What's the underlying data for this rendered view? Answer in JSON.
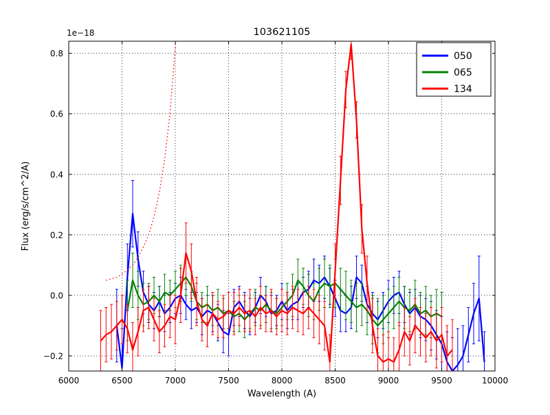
{
  "chart_data": {
    "type": "line",
    "title": "103621105",
    "xlabel": "Wavelength (A)",
    "ylabel": "Flux (erg/s/cm^2/A)",
    "y_offset_label": "1e−18",
    "xlim": [
      6000,
      10000
    ],
    "ylim": [
      -0.25,
      0.84
    ],
    "xticks": [
      6000,
      6500,
      7000,
      7500,
      8000,
      8500,
      9000,
      9500,
      10000
    ],
    "yticks": [
      -0.2,
      0.0,
      0.2,
      0.4,
      0.6,
      0.8
    ],
    "grid": "dotted",
    "legend": {
      "position": "upper right"
    },
    "series": [
      {
        "name": "050",
        "color": "#0000ff",
        "style": "solid",
        "points": [
          [
            6450,
            -0.1,
            0.12
          ],
          [
            6500,
            -0.24,
            0.13
          ],
          [
            6550,
            0.06,
            0.11
          ],
          [
            6600,
            0.27,
            0.11
          ],
          [
            6650,
            0.12,
            0.09
          ],
          [
            6700,
            0.01,
            0.07
          ],
          [
            6750,
            -0.03,
            0.06
          ],
          [
            6800,
            -0.05,
            0.06
          ],
          [
            6850,
            -0.02,
            0.05
          ],
          [
            6900,
            -0.06,
            0.06
          ],
          [
            6950,
            -0.04,
            0.05
          ],
          [
            7000,
            -0.01,
            0.05
          ],
          [
            7050,
            0,
            0.06
          ],
          [
            7100,
            -0.03,
            0.05
          ],
          [
            7150,
            -0.05,
            0.06
          ],
          [
            7200,
            -0.04,
            0.05
          ],
          [
            7250,
            -0.07,
            0.06
          ],
          [
            7300,
            -0.05,
            0.05
          ],
          [
            7350,
            -0.06,
            0.06
          ],
          [
            7400,
            -0.09,
            0.06
          ],
          [
            7450,
            -0.12,
            0.07
          ],
          [
            7500,
            -0.13,
            0.07
          ],
          [
            7550,
            -0.04,
            0.06
          ],
          [
            7600,
            -0.02,
            0.05
          ],
          [
            7650,
            -0.05,
            0.06
          ],
          [
            7700,
            -0.07,
            0.06
          ],
          [
            7750,
            -0.04,
            0.05
          ],
          [
            7800,
            0,
            0.06
          ],
          [
            7850,
            -0.02,
            0.05
          ],
          [
            7900,
            -0.06,
            0.06
          ],
          [
            7950,
            -0.05,
            0.05
          ],
          [
            8000,
            -0.02,
            0.06
          ],
          [
            8050,
            -0.05,
            0.06
          ],
          [
            8100,
            -0.03,
            0.05
          ],
          [
            8150,
            -0.02,
            0.06
          ],
          [
            8200,
            0.01,
            0.05
          ],
          [
            8250,
            0.02,
            0.06
          ],
          [
            8300,
            0.05,
            0.07
          ],
          [
            8350,
            0.04,
            0.06
          ],
          [
            8400,
            0.06,
            0.07
          ],
          [
            8450,
            0.03,
            0.06
          ],
          [
            8500,
            -0.01,
            0.06
          ],
          [
            8550,
            -0.05,
            0.07
          ],
          [
            8600,
            -0.06,
            0.06
          ],
          [
            8650,
            -0.04,
            0.07
          ],
          [
            8700,
            0.06,
            0.07
          ],
          [
            8750,
            0.04,
            0.06
          ],
          [
            8800,
            -0.03,
            0.06
          ],
          [
            8850,
            -0.06,
            0.07
          ],
          [
            8900,
            -0.08,
            0.06
          ],
          [
            8950,
            -0.05,
            0.06
          ],
          [
            9000,
            -0.02,
            0.07
          ],
          [
            9050,
            0,
            0.06
          ],
          [
            9100,
            0.01,
            0.07
          ],
          [
            9150,
            -0.03,
            0.06
          ],
          [
            9200,
            -0.06,
            0.07
          ],
          [
            9250,
            -0.04,
            0.06
          ],
          [
            9300,
            -0.07,
            0.07
          ],
          [
            9350,
            -0.08,
            0.07
          ],
          [
            9400,
            -0.1,
            0.08
          ],
          [
            9450,
            -0.13,
            0.08
          ],
          [
            9500,
            -0.16,
            0.09
          ],
          [
            9550,
            -0.22,
            0.1
          ],
          [
            9600,
            -0.25,
            0.11
          ],
          [
            9650,
            -0.23,
            0.12
          ],
          [
            9700,
            -0.2,
            0.1
          ],
          [
            9750,
            -0.13,
            0.09
          ],
          [
            9800,
            -0.06,
            0.1
          ],
          [
            9850,
            -0.01,
            0.14
          ],
          [
            9900,
            -0.22,
            0.1
          ]
        ]
      },
      {
        "name": "065",
        "color": "#008000",
        "style": "solid",
        "points": [
          [
            6550,
            -0.05,
            0.1
          ],
          [
            6600,
            0.05,
            0.09
          ],
          [
            6650,
            0,
            0.08
          ],
          [
            6700,
            -0.03,
            0.07
          ],
          [
            6750,
            -0.02,
            0.06
          ],
          [
            6800,
            0,
            0.06
          ],
          [
            6850,
            -0.02,
            0.05
          ],
          [
            6900,
            0.01,
            0.06
          ],
          [
            6950,
            0,
            0.05
          ],
          [
            7000,
            0.02,
            0.06
          ],
          [
            7050,
            0.04,
            0.06
          ],
          [
            7100,
            0.06,
            0.06
          ],
          [
            7150,
            0.03,
            0.05
          ],
          [
            7200,
            -0.02,
            0.06
          ],
          [
            7250,
            -0.04,
            0.05
          ],
          [
            7300,
            -0.03,
            0.06
          ],
          [
            7350,
            -0.05,
            0.05
          ],
          [
            7400,
            -0.04,
            0.06
          ],
          [
            7450,
            -0.06,
            0.05
          ],
          [
            7500,
            -0.05,
            0.06
          ],
          [
            7550,
            -0.07,
            0.05
          ],
          [
            7600,
            -0.06,
            0.06
          ],
          [
            7650,
            -0.08,
            0.06
          ],
          [
            7700,
            -0.06,
            0.05
          ],
          [
            7750,
            -0.04,
            0.06
          ],
          [
            7800,
            -0.05,
            0.05
          ],
          [
            7850,
            -0.03,
            0.06
          ],
          [
            7900,
            -0.05,
            0.06
          ],
          [
            7950,
            -0.06,
            0.05
          ],
          [
            8000,
            -0.04,
            0.06
          ],
          [
            8050,
            -0.02,
            0.06
          ],
          [
            8100,
            0,
            0.07
          ],
          [
            8150,
            0.05,
            0.07
          ],
          [
            8200,
            0.03,
            0.06
          ],
          [
            8250,
            0,
            0.07
          ],
          [
            8300,
            -0.02,
            0.06
          ],
          [
            8350,
            0.02,
            0.07
          ],
          [
            8400,
            0.04,
            0.08
          ],
          [
            8450,
            0.03,
            0.07
          ],
          [
            8500,
            0.04,
            0.08
          ],
          [
            8550,
            0.02,
            0.07
          ],
          [
            8600,
            0,
            0.08
          ],
          [
            8650,
            -0.02,
            0.07
          ],
          [
            8700,
            -0.04,
            0.08
          ],
          [
            8750,
            -0.03,
            0.07
          ],
          [
            8800,
            -0.05,
            0.08
          ],
          [
            8850,
            -0.08,
            0.08
          ],
          [
            8900,
            -0.1,
            0.09
          ],
          [
            8950,
            -0.08,
            0.08
          ],
          [
            9000,
            -0.06,
            0.08
          ],
          [
            9050,
            -0.04,
            0.07
          ],
          [
            9100,
            -0.02,
            0.08
          ],
          [
            9150,
            -0.04,
            0.07
          ],
          [
            9200,
            -0.05,
            0.07
          ],
          [
            9250,
            -0.03,
            0.08
          ],
          [
            9300,
            -0.06,
            0.07
          ],
          [
            9350,
            -0.05,
            0.08
          ],
          [
            9400,
            -0.07,
            0.07
          ],
          [
            9450,
            -0.06,
            0.08
          ],
          [
            9500,
            -0.07,
            0.08
          ]
        ]
      },
      {
        "name": "134",
        "color": "#ff0000",
        "style": "solid",
        "points": [
          [
            6300,
            -0.15,
            0.1
          ],
          [
            6350,
            -0.13,
            0.09
          ],
          [
            6400,
            -0.12,
            0.09
          ],
          [
            6450,
            -0.1,
            0.08
          ],
          [
            6500,
            -0.08,
            0.08
          ],
          [
            6550,
            -0.11,
            0.08
          ],
          [
            6600,
            -0.18,
            0.09
          ],
          [
            6650,
            -0.12,
            0.08
          ],
          [
            6700,
            -0.05,
            0.07
          ],
          [
            6750,
            -0.04,
            0.07
          ],
          [
            6800,
            -0.08,
            0.07
          ],
          [
            6850,
            -0.12,
            0.07
          ],
          [
            6900,
            -0.1,
            0.07
          ],
          [
            6950,
            -0.07,
            0.07
          ],
          [
            7000,
            -0.08,
            0.08
          ],
          [
            7050,
            0,
            0.09
          ],
          [
            7100,
            0.14,
            0.1
          ],
          [
            7150,
            0.08,
            0.09
          ],
          [
            7200,
            -0.02,
            0.08
          ],
          [
            7250,
            -0.08,
            0.07
          ],
          [
            7300,
            -0.1,
            0.07
          ],
          [
            7350,
            -0.06,
            0.07
          ],
          [
            7400,
            -0.08,
            0.06
          ],
          [
            7450,
            -0.07,
            0.07
          ],
          [
            7500,
            -0.05,
            0.06
          ],
          [
            7550,
            -0.06,
            0.07
          ],
          [
            7600,
            -0.04,
            0.06
          ],
          [
            7650,
            -0.06,
            0.06
          ],
          [
            7700,
            -0.05,
            0.07
          ],
          [
            7750,
            -0.07,
            0.06
          ],
          [
            7800,
            -0.04,
            0.07
          ],
          [
            7850,
            -0.06,
            0.06
          ],
          [
            7900,
            -0.05,
            0.07
          ],
          [
            7950,
            -0.07,
            0.06
          ],
          [
            8000,
            -0.05,
            0.07
          ],
          [
            8050,
            -0.06,
            0.07
          ],
          [
            8100,
            -0.04,
            0.07
          ],
          [
            8150,
            -0.05,
            0.07
          ],
          [
            8200,
            -0.06,
            0.07
          ],
          [
            8250,
            -0.04,
            0.07
          ],
          [
            8300,
            -0.06,
            0.08
          ],
          [
            8350,
            -0.08,
            0.08
          ],
          [
            8400,
            -0.1,
            0.08
          ],
          [
            8450,
            -0.22,
            0.09
          ],
          [
            8500,
            0.08,
            0.09
          ],
          [
            8550,
            0.38,
            0.08
          ],
          [
            8600,
            0.68,
            0.06
          ],
          [
            8650,
            0.83,
            0.05
          ],
          [
            8700,
            0.58,
            0.06
          ],
          [
            8750,
            0.22,
            0.08
          ],
          [
            8800,
            0.04,
            0.09
          ],
          [
            8850,
            -0.1,
            0.09
          ],
          [
            8900,
            -0.2,
            0.09
          ],
          [
            8950,
            -0.22,
            0.09
          ],
          [
            9000,
            -0.21,
            0.09
          ],
          [
            9050,
            -0.22,
            0.08
          ],
          [
            9100,
            -0.18,
            0.09
          ],
          [
            9150,
            -0.12,
            0.08
          ],
          [
            9200,
            -0.15,
            0.08
          ],
          [
            9250,
            -0.1,
            0.09
          ],
          [
            9300,
            -0.12,
            0.08
          ],
          [
            9350,
            -0.14,
            0.08
          ],
          [
            9400,
            -0.12,
            0.08
          ],
          [
            9450,
            -0.15,
            0.09
          ],
          [
            9500,
            -0.13,
            0.09
          ],
          [
            9550,
            -0.2,
            0.1
          ],
          [
            9600,
            -0.18,
            0.1
          ]
        ]
      }
    ],
    "model_curve": {
      "name": "134 model (dotted)",
      "color": "#ff0000",
      "style": "dotted",
      "points": [
        [
          6350,
          0.05
        ],
        [
          6400,
          0.055
        ],
        [
          6450,
          0.06
        ],
        [
          6500,
          0.07
        ],
        [
          6550,
          0.085
        ],
        [
          6600,
          0.1
        ],
        [
          6650,
          0.125
        ],
        [
          6700,
          0.16
        ],
        [
          6750,
          0.2
        ],
        [
          6800,
          0.26
        ],
        [
          6850,
          0.34
        ],
        [
          6900,
          0.45
        ],
        [
          6950,
          0.6
        ],
        [
          7000,
          0.82
        ],
        [
          7040,
          1.05
        ]
      ]
    }
  }
}
